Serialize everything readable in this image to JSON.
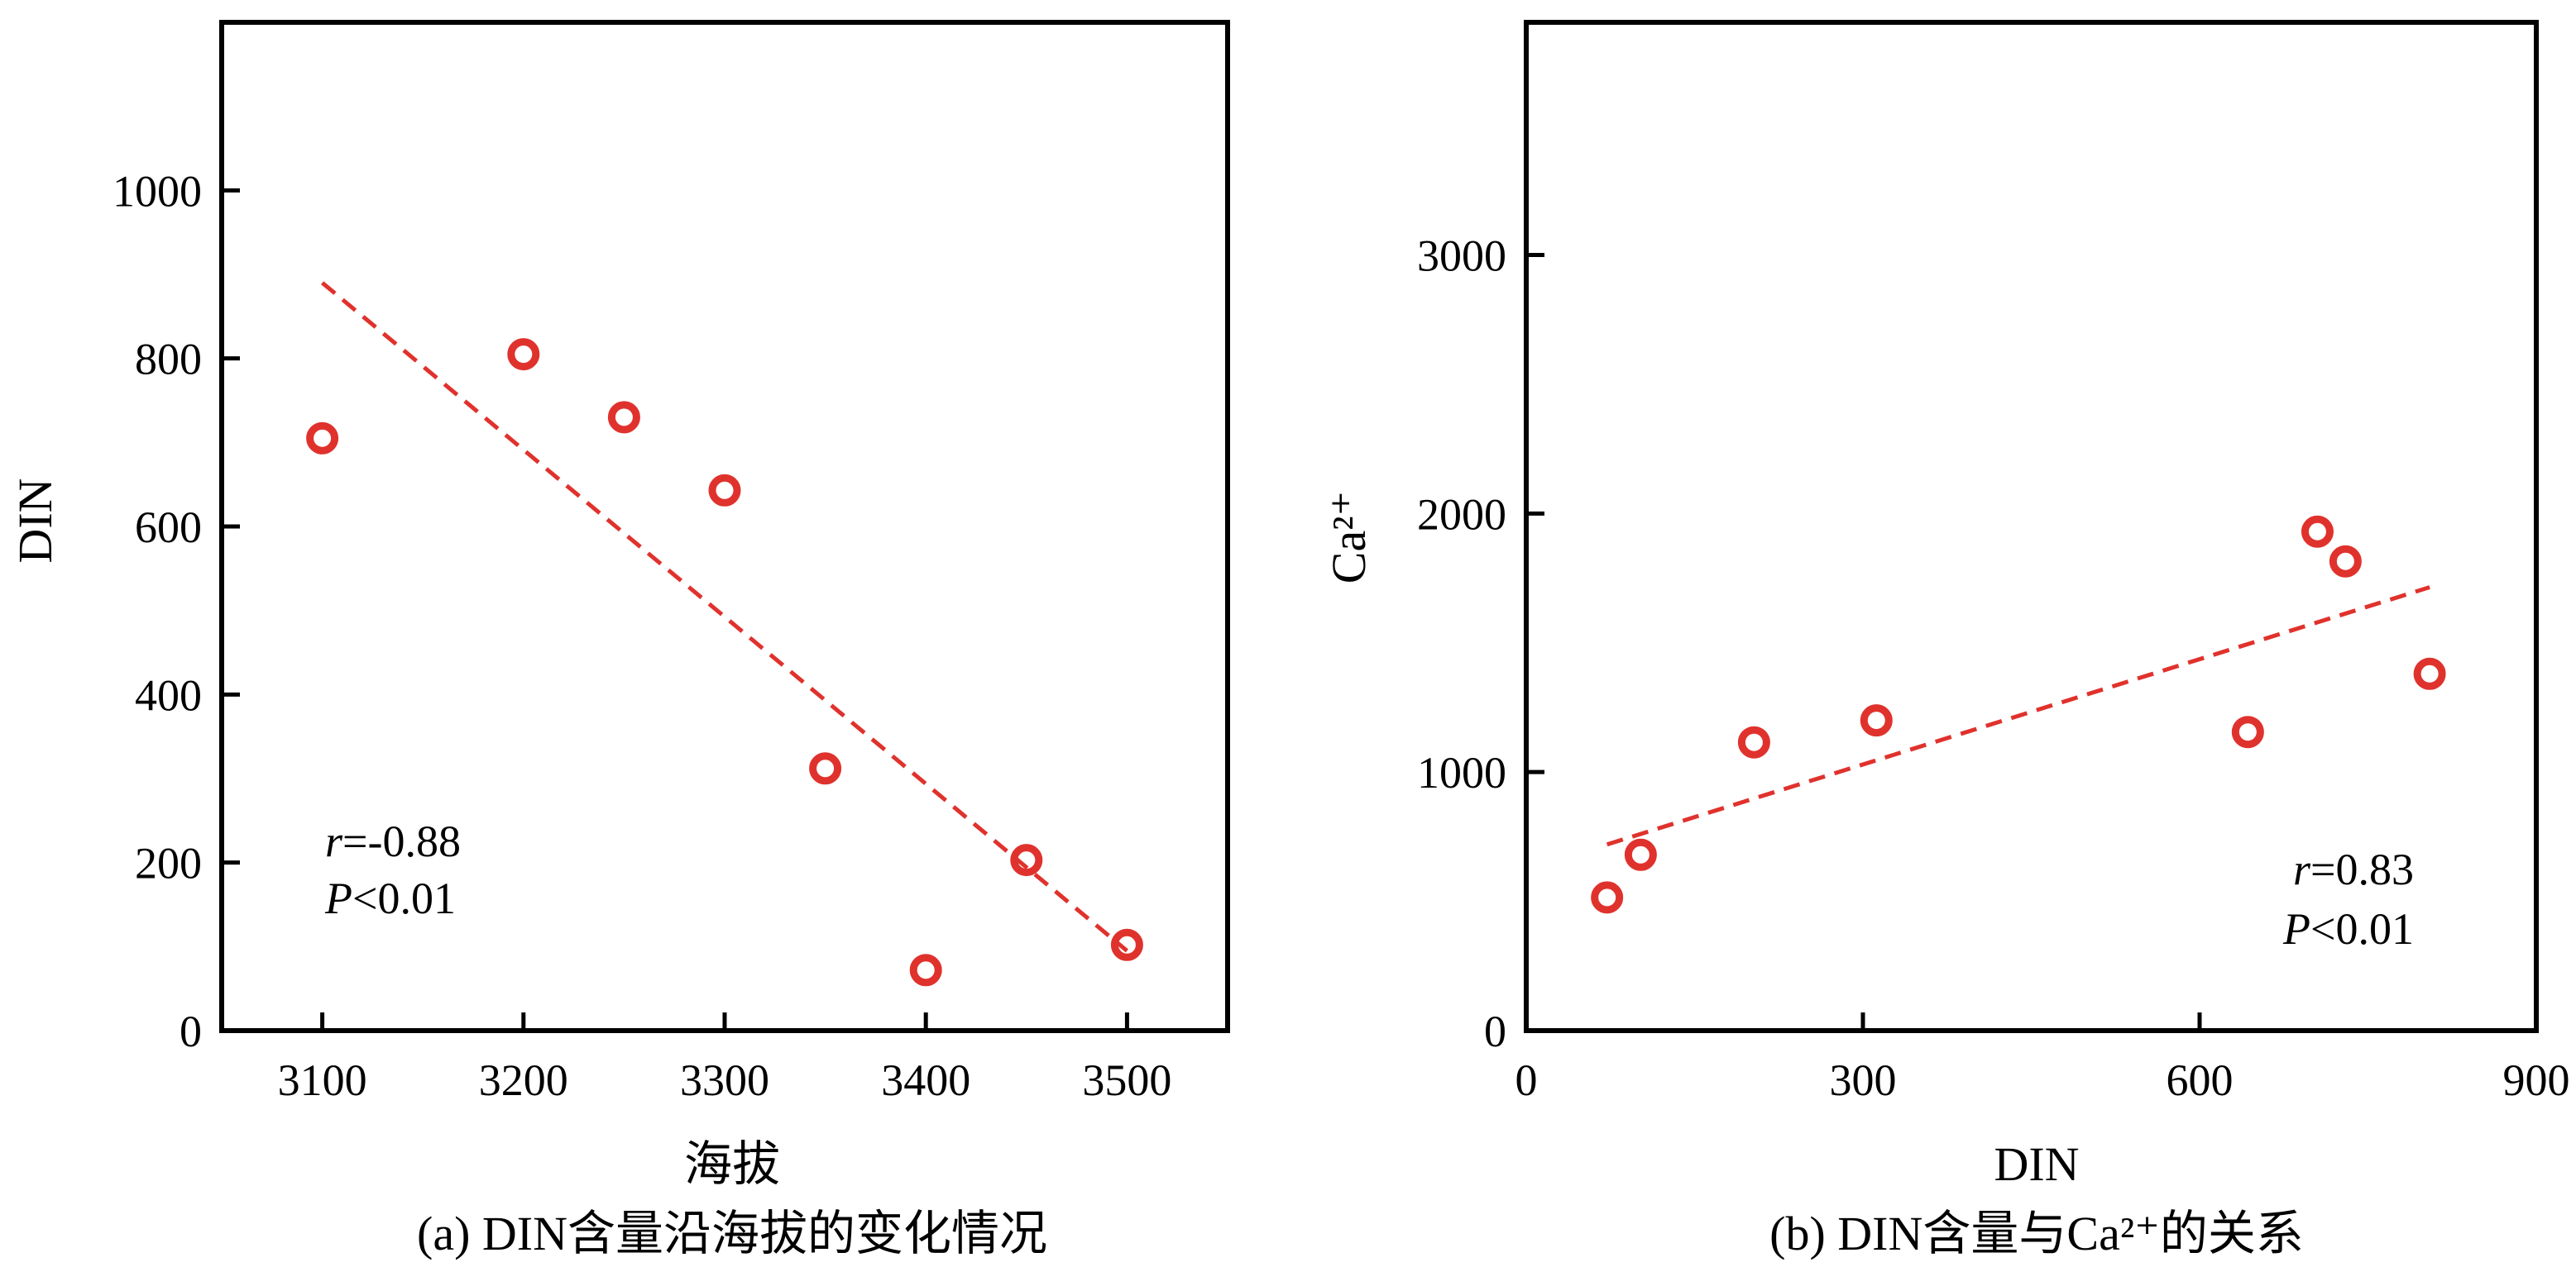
{
  "colors": {
    "marker": "#e0322d",
    "trend": "#e0322d",
    "axis": "#000000"
  },
  "chart_data": [
    {
      "type": "scatter",
      "caption": "(a) DIN含量沿海拔的变化情况",
      "xlabel": "海拔",
      "ylabel": "DIN",
      "xlim": [
        3050,
        3550
      ],
      "ylim": [
        0,
        1200
      ],
      "xticks": [
        3100,
        3200,
        3300,
        3400,
        3500
      ],
      "yticks": [
        0,
        200,
        400,
        600,
        800,
        1000
      ],
      "grid": false,
      "points": [
        {
          "x": 3100,
          "y": 705
        },
        {
          "x": 3200,
          "y": 805
        },
        {
          "x": 3250,
          "y": 730
        },
        {
          "x": 3300,
          "y": 643
        },
        {
          "x": 3350,
          "y": 312
        },
        {
          "x": 3400,
          "y": 72
        },
        {
          "x": 3450,
          "y": 203
        },
        {
          "x": 3500,
          "y": 102
        }
      ],
      "trendline": {
        "x": [
          3100,
          3500
        ],
        "y": [
          890,
          95
        ]
      },
      "stats": {
        "r_symbol": "r",
        "r_value": "=-0.88",
        "p_symbol": "P",
        "p_value": "<0.01",
        "position": "bottom-left"
      }
    },
    {
      "type": "scatter",
      "caption": "(b) DIN含量与Ca²⁺的关系",
      "xlabel": "DIN",
      "ylabel": "Ca²⁺",
      "xlim": [
        0,
        900
      ],
      "ylim": [
        0,
        3900
      ],
      "xticks": [
        0,
        300,
        600,
        900
      ],
      "yticks": [
        0,
        1000,
        2000,
        3000
      ],
      "grid": false,
      "points": [
        {
          "x": 72,
          "y": 515
        },
        {
          "x": 102,
          "y": 680
        },
        {
          "x": 203,
          "y": 1115
        },
        {
          "x": 312,
          "y": 1200
        },
        {
          "x": 643,
          "y": 1155
        },
        {
          "x": 705,
          "y": 1930
        },
        {
          "x": 730,
          "y": 1815
        },
        {
          "x": 805,
          "y": 1380
        }
      ],
      "trendline": {
        "x": [
          72,
          805
        ],
        "y": [
          720,
          1715
        ]
      },
      "stats": {
        "r_symbol": "r",
        "r_value": "=0.83",
        "p_symbol": "P",
        "p_value": "<0.01",
        "position": "bottom-right"
      }
    }
  ]
}
